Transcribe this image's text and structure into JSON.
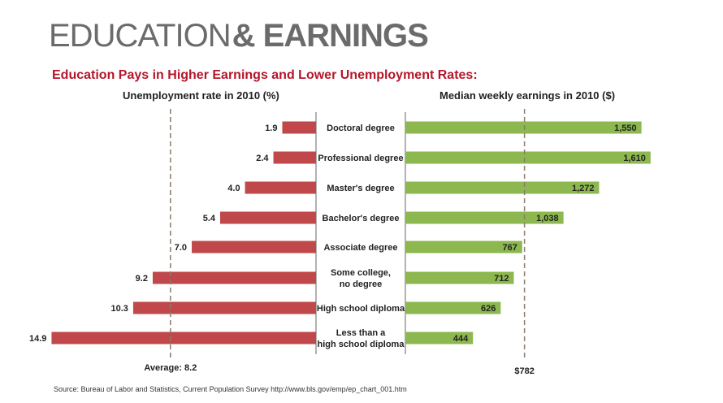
{
  "header": {
    "title_light": "EDUCATION",
    "title_bold": "& EARNINGS",
    "subtitle": "Education Pays in Higher Earnings and Lower Unemployment Rates:"
  },
  "source": "Source: Bureau of Labor and Statistics, Current Population Survey http://www.bls.gov/emp/ep_chart_001.htm",
  "colors": {
    "unemployment_bar": "#c0484a",
    "earnings_bar": "#8cb84f",
    "title": "#6b6b6b",
    "subtitle": "#b5162a"
  },
  "chart_data": [
    {
      "type": "bar",
      "orientation": "horizontal",
      "direction": "leftward",
      "title": "Unemployment rate in 2010 (%)",
      "categories": [
        "Doctoral degree",
        "Professional degree",
        "Master's degree",
        "Bachelor's degree",
        "Associate degree",
        "Some college, no degree",
        "High school diploma",
        "Less than a high school diploma"
      ],
      "values": [
        1.9,
        2.4,
        4.0,
        5.4,
        7.0,
        9.2,
        10.3,
        14.9
      ],
      "value_labels": [
        "1.9",
        "2.4",
        "4.0",
        "5.4",
        "7.0",
        "9.2",
        "10.3",
        "14.9"
      ],
      "reference_line": {
        "value": 8.2,
        "label": "Average: 8.2"
      },
      "xlim": [
        0,
        15
      ]
    },
    {
      "type": "bar",
      "orientation": "horizontal",
      "direction": "rightward",
      "title": "Median weekly earnings in 2010 ($)",
      "categories": [
        "Doctoral degree",
        "Professional degree",
        "Master's degree",
        "Bachelor's degree",
        "Associate degree",
        "Some college, no degree",
        "High school diploma",
        "Less than a high school diploma"
      ],
      "values": [
        1550,
        1610,
        1272,
        1038,
        767,
        712,
        626,
        444
      ],
      "value_labels": [
        "1,550",
        "1,610",
        "1,272",
        "1,038",
        "767",
        "712",
        "626",
        "444"
      ],
      "reference_line": {
        "value": 782,
        "label": "$782"
      },
      "xlim": [
        0,
        1650
      ]
    }
  ],
  "category_lines": [
    [
      "Doctoral degree"
    ],
    [
      "Professional degree"
    ],
    [
      "Master's degree"
    ],
    [
      "Bachelor's degree"
    ],
    [
      "Associate degree"
    ],
    [
      "Some college,",
      "no degree"
    ],
    [
      "High school diploma"
    ],
    [
      "Less than a",
      "high school diploma"
    ]
  ]
}
